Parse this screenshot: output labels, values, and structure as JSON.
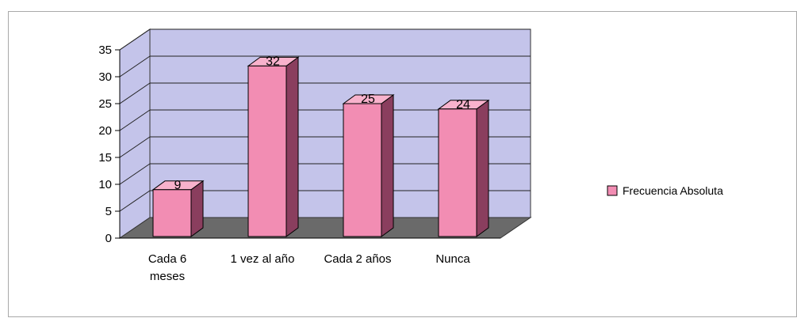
{
  "chart_data": {
    "type": "bar",
    "categories": [
      "Cada 6 meses",
      "1 vez al año",
      "Cada 2 años",
      "Nunca"
    ],
    "category_lines": [
      [
        "Cada 6",
        "meses"
      ],
      [
        "1 vez al año"
      ],
      [
        "Cada 2 años"
      ],
      [
        "Nunca"
      ]
    ],
    "series": [
      {
        "name": "Frecuencia Absoluta",
        "values": [
          9,
          32,
          25,
          24
        ]
      }
    ],
    "ylim": [
      0,
      35
    ],
    "yticks": [
      0,
      5,
      10,
      15,
      20,
      25,
      30,
      35
    ],
    "grid": true,
    "legend_position": "right",
    "data_labels": true,
    "title": "",
    "xlabel": "",
    "ylabel": ""
  },
  "colors": {
    "wall": "#c4c4ea",
    "floor": "#6a6a6a",
    "bar_front": "#f28db3",
    "bar_side": "#8a3e5e",
    "bar_top": "#f8b2cc",
    "grid": "#222222"
  }
}
